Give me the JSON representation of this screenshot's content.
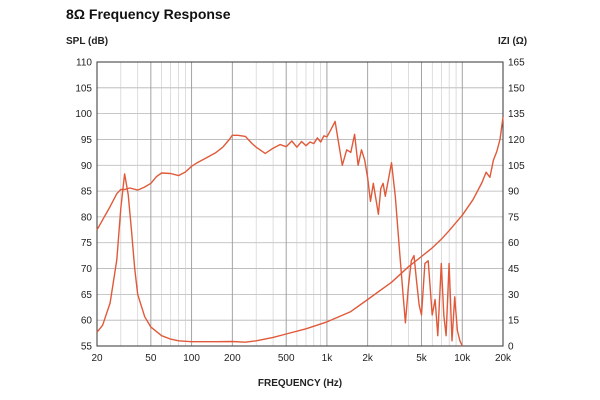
{
  "title": "8Ω Frequency Response",
  "chart_data": {
    "type": "line",
    "title": "8Ω Frequency Response",
    "xlabel": "FREQUENCY (Hz)",
    "ylabel_left": "SPL (dB)",
    "ylabel_right": "IZI (Ω)",
    "x_scale": "log",
    "xlim": [
      20,
      20000
    ],
    "ylim_left": [
      55,
      110
    ],
    "ylim_right": [
      0,
      165
    ],
    "grid": true,
    "x_ticks": [
      {
        "value": 20,
        "label": "20"
      },
      {
        "value": 50,
        "label": "50"
      },
      {
        "value": 100,
        "label": "100"
      },
      {
        "value": 200,
        "label": "200"
      },
      {
        "value": 500,
        "label": "500"
      },
      {
        "value": 1000,
        "label": "1k"
      },
      {
        "value": 2000,
        "label": "2k"
      },
      {
        "value": 5000,
        "label": "5k"
      },
      {
        "value": 10000,
        "label": "10k"
      },
      {
        "value": 20000,
        "label": "20k"
      }
    ],
    "y_ticks_left": [
      {
        "value": 110,
        "label": "110"
      },
      {
        "value": 105,
        "label": "105"
      },
      {
        "value": 100,
        "label": "100"
      },
      {
        "value": 95,
        "label": "95"
      },
      {
        "value": 90,
        "label": "90"
      },
      {
        "value": 85,
        "label": "85"
      },
      {
        "value": 80,
        "label": "80"
      },
      {
        "value": 75,
        "label": "75"
      },
      {
        "value": 70,
        "label": "70"
      },
      {
        "value": 65,
        "label": "65"
      },
      {
        "value": 60,
        "label": "60"
      },
      {
        "value": 55,
        "label": "55"
      }
    ],
    "y_ticks_right": [
      {
        "value": 165,
        "label": "165"
      },
      {
        "value": 150,
        "label": "150"
      },
      {
        "value": 135,
        "label": "135"
      },
      {
        "value": 120,
        "label": "120"
      },
      {
        "value": 105,
        "label": "105"
      },
      {
        "value": 90,
        "label": "90"
      },
      {
        "value": 75,
        "label": "75"
      },
      {
        "value": 60,
        "label": "60"
      },
      {
        "value": 45,
        "label": "45"
      },
      {
        "value": 30,
        "label": "30"
      },
      {
        "value": 15,
        "label": "15"
      },
      {
        "value": 0,
        "label": "0"
      }
    ],
    "series_color": "#e05a3a",
    "series": [
      {
        "axis": "left",
        "x": [
          20,
          25,
          28,
          30,
          32,
          35,
          40,
          45,
          50,
          55,
          60,
          70,
          80,
          90,
          100,
          110,
          130,
          150,
          170,
          190,
          200,
          220,
          250,
          280,
          300,
          350,
          400,
          450,
          500,
          550,
          600,
          650,
          700,
          750,
          800,
          850,
          900,
          950,
          1000,
          1050,
          1100,
          1150,
          1200,
          1300,
          1400,
          1500,
          1600,
          1700,
          1800,
          1900,
          2000,
          2100,
          2200,
          2400,
          2500,
          2600,
          2700,
          3000,
          3200,
          3400,
          3600,
          3800,
          4000,
          4200,
          4400,
          4600,
          4800,
          5000,
          5300,
          5600,
          6000,
          6300,
          6600,
          7000,
          7300,
          7600,
          8000,
          8400,
          8800,
          9200,
          9600,
          10000
        ],
        "y": [
          77.5,
          82,
          84.5,
          85.3,
          85.3,
          85.6,
          85.2,
          85.8,
          86.5,
          87.8,
          88.5,
          88.4,
          88,
          88.7,
          89.8,
          90.5,
          91.5,
          92.4,
          93.5,
          95,
          95.8,
          95.8,
          95.6,
          94.2,
          93.5,
          92.3,
          93.3,
          94,
          93.6,
          94.7,
          93.5,
          94.6,
          93.8,
          94.5,
          94.2,
          95.3,
          94.5,
          95.7,
          95.5,
          96.5,
          97.5,
          98.5,
          95.5,
          90,
          93,
          92.5,
          96,
          90,
          93,
          91,
          87.5,
          83,
          86.5,
          80.5,
          85.5,
          86.5,
          84,
          90.5,
          84,
          75,
          67,
          59.5,
          66.5,
          71.5,
          72.5,
          67.5,
          63,
          61,
          71,
          71.5,
          61,
          64,
          57,
          71,
          61,
          57,
          71,
          56,
          64.5,
          58,
          56,
          55
        ]
      },
      {
        "axis": "right",
        "x": [
          20,
          22,
          25,
          28,
          30,
          32,
          34,
          36,
          38,
          40,
          45,
          50,
          60,
          70,
          80,
          100,
          150,
          200,
          250,
          300,
          400,
          500,
          700,
          1000,
          1500,
          2000,
          3000,
          4000,
          5000,
          6000,
          7000,
          8000,
          10000,
          12000,
          14000,
          15000,
          16000,
          17000,
          18000,
          19000,
          20000
        ],
        "y": [
          8,
          12,
          25,
          50,
          80,
          100,
          88,
          67,
          45,
          30,
          17,
          11,
          6,
          4,
          3,
          2.5,
          2.5,
          2.6,
          2.2,
          3,
          5,
          7,
          10,
          14,
          20,
          27,
          37,
          46,
          52,
          57,
          62,
          67,
          76,
          85,
          95,
          101,
          98,
          108,
          113,
          120,
          133
        ]
      }
    ]
  }
}
